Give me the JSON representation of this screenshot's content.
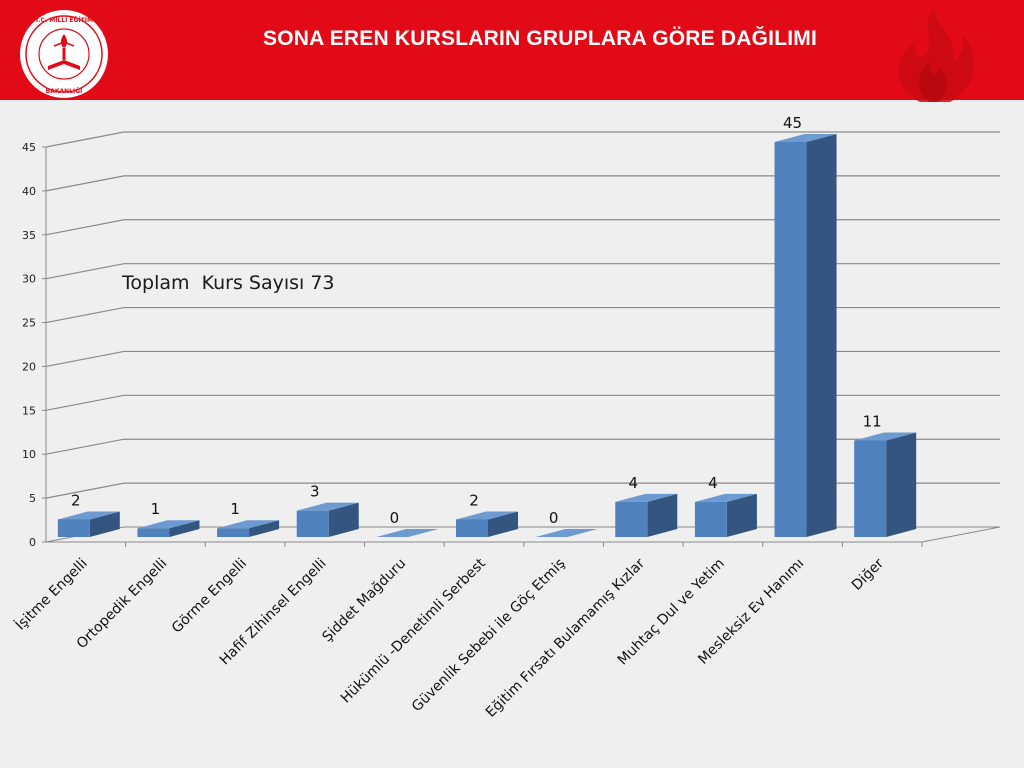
{
  "header": {
    "title": "SONA EREN KURSLARIN GRUPLARA GÖRE DAĞILIMI",
    "logo_text": "T.C. MİLLÎ EĞİTİM BAKANLIĞI",
    "background_color": "#e30a17"
  },
  "note": "Toplam  Kurs Sayısı 73",
  "chart_data": {
    "type": "bar",
    "style": "3d-column",
    "categories": [
      "İşitme Engelli",
      "Ortopedik Engelli",
      "Görme Engelli",
      "Hafif Zihinsel Engelli",
      "Şiddet Mağduru",
      "Hükümlü -Denetimli Serbest",
      "Güvenlik Sebebi ile  Göç Etmiş",
      "Eğitim  Fırsatı Bulamamış Kızlar",
      "Muhtaç Dul ve Yetim",
      "Mesleksiz  Ev Hanımı",
      "Diğer"
    ],
    "values": [
      2,
      1,
      1,
      3,
      0,
      2,
      0,
      4,
      4,
      45,
      11
    ],
    "yticks": [
      0,
      5,
      10,
      15,
      20,
      25,
      30,
      35,
      40,
      45
    ],
    "ylim": [
      0,
      45
    ],
    "grid": true,
    "legend": "none",
    "bar_color": "#4f81bd"
  }
}
